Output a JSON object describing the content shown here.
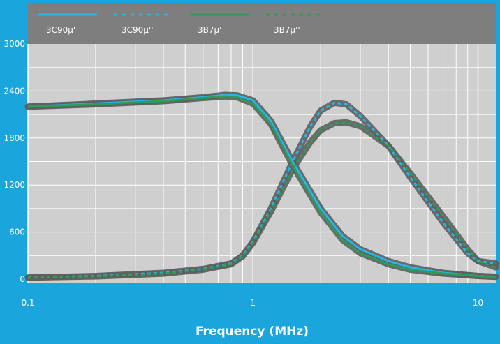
{
  "chart_data": {
    "type": "line",
    "title": "",
    "xlabel": "Frequency (MHz)",
    "ylabel": "",
    "xscale": "log",
    "xlim": [
      0.1,
      12
    ],
    "ylim": [
      0,
      3000
    ],
    "xticks": [
      {
        "value": 0.1,
        "label": "0.1"
      },
      {
        "value": 1,
        "label": "1"
      },
      {
        "value": 10,
        "label": "10"
      }
    ],
    "yticks": [
      {
        "value": 0,
        "label": "0"
      },
      {
        "value": 600,
        "label": "600"
      },
      {
        "value": 1200,
        "label": "1200"
      },
      {
        "value": 1800,
        "label": "1800"
      },
      {
        "value": 2400,
        "label": "2400"
      },
      {
        "value": 3000,
        "label": "3000"
      }
    ],
    "grid": true,
    "legend_position": "top",
    "series": [
      {
        "name": "3C90μ'",
        "style": "solid",
        "color": "#29b4e8",
        "x": [
          0.1,
          0.2,
          0.4,
          0.6,
          0.75,
          0.85,
          1.0,
          1.2,
          1.5,
          2.0,
          2.5,
          3.0,
          4.0,
          5.0,
          7.0,
          10.0,
          12.0
        ],
        "y": [
          2200,
          2240,
          2280,
          2320,
          2350,
          2345,
          2280,
          2020,
          1500,
          900,
          550,
          380,
          230,
          150,
          80,
          40,
          30
        ]
      },
      {
        "name": "3C90μ''",
        "style": "dashed",
        "color": "#29b4e8",
        "x": [
          0.1,
          0.2,
          0.4,
          0.6,
          0.8,
          0.9,
          1.0,
          1.2,
          1.5,
          1.8,
          2.0,
          2.3,
          2.6,
          3.0,
          4.0,
          5.0,
          7.0,
          9.0,
          10.0,
          12.0
        ],
        "y": [
          20,
          40,
          80,
          130,
          200,
          300,
          480,
          900,
          1500,
          1950,
          2150,
          2250,
          2230,
          2080,
          1700,
          1300,
          720,
          330,
          230,
          200
        ]
      },
      {
        "name": "3B7μ'",
        "style": "solid",
        "color": "#2f9a5a",
        "x": [
          0.1,
          0.2,
          0.4,
          0.6,
          0.75,
          0.85,
          1.0,
          1.2,
          1.5,
          2.0,
          2.5,
          3.0,
          4.0,
          5.0,
          7.0,
          10.0,
          12.0
        ],
        "y": [
          2200,
          2230,
          2270,
          2310,
          2330,
          2320,
          2240,
          1980,
          1450,
          850,
          500,
          330,
          190,
          120,
          70,
          40,
          30
        ]
      },
      {
        "name": "3B7μ''",
        "style": "dashed",
        "color": "#2f9a5a",
        "x": [
          0.1,
          0.2,
          0.4,
          0.6,
          0.8,
          0.9,
          1.0,
          1.2,
          1.5,
          1.8,
          2.0,
          2.3,
          2.6,
          3.0,
          4.0,
          5.0,
          7.0,
          9.0,
          10.0,
          12.0
        ],
        "y": [
          20,
          35,
          70,
          120,
          190,
          290,
          460,
          860,
          1400,
          1750,
          1900,
          1990,
          2000,
          1950,
          1700,
          1350,
          800,
          380,
          230,
          150
        ]
      }
    ]
  }
}
